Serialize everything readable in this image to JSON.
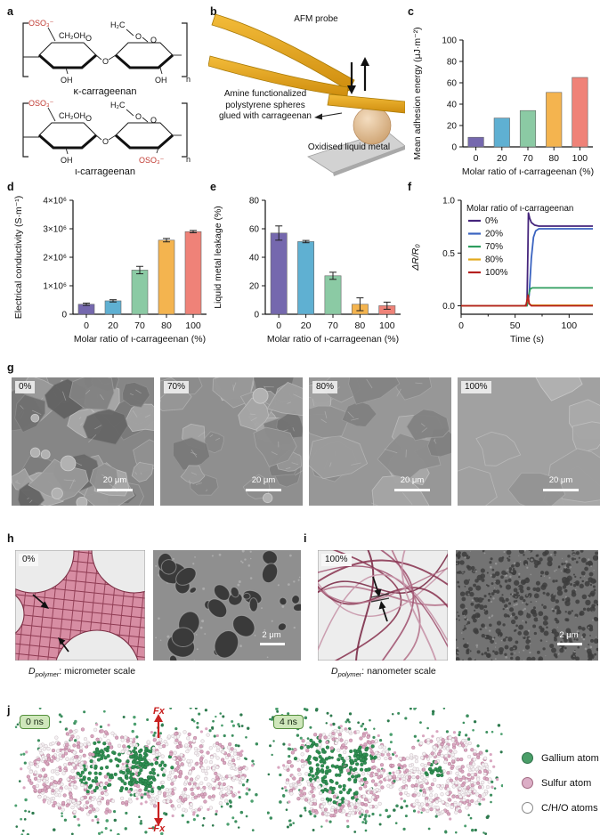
{
  "panel_labels": {
    "a": "a",
    "b": "b",
    "c": "c",
    "d": "d",
    "e": "e",
    "f": "f",
    "g": "g",
    "h": "h",
    "i": "i",
    "j": "j"
  },
  "panel_a": {
    "top": {
      "sulfate": "OSO₃⁻",
      "ch2oh": "CH₂OH",
      "h2c": "H₂C",
      "o_ring1": "O",
      "o_glyco": "O",
      "o_bridge1": "O",
      "o_bridge2": "O",
      "oh_left": "OH",
      "oh_right": "OH",
      "n": "n",
      "caption": "κ-carrageenan"
    },
    "bottom": {
      "sulfate": "OSO₃⁻",
      "ch2oh": "CH₂OH",
      "h2c": "H₂C",
      "o_ring1": "O",
      "o_glyco": "O",
      "o_bridge1": "O",
      "o_bridge2": "O",
      "oh_left": "OH",
      "sulfate2": "OSO₃⁻",
      "n": "n",
      "caption": "ι-carrageenan"
    }
  },
  "panel_b": {
    "probe_label": "AFM probe",
    "sphere_label": [
      "Amine functionalized",
      "polystyrene spheres",
      "glued with carrageenan"
    ],
    "substrate_label": "Oxidised liquid metal"
  },
  "chart_data": [
    {
      "id": "c",
      "type": "bar",
      "categories": [
        "0",
        "20",
        "70",
        "80",
        "100"
      ],
      "values": [
        9,
        27,
        34,
        51,
        65
      ],
      "xlabel": "Molar ratio of ι-carrageenan (%)",
      "ylabel": "Mean adhesion energy (μJ·m⁻²)",
      "ylim": [
        0,
        100
      ],
      "yticks": [
        0,
        20,
        40,
        60,
        80,
        100
      ],
      "bar_colors": [
        "#7568ae",
        "#5fb0d2",
        "#8bcaa4",
        "#f4b44f",
        "#ef8278"
      ]
    },
    {
      "id": "d",
      "type": "bar",
      "categories": [
        "0",
        "20",
        "70",
        "80",
        "100"
      ],
      "values": [
        350000,
        470000,
        1550000,
        2600000,
        2900000
      ],
      "errors": [
        40000,
        40000,
        130000,
        60000,
        40000
      ],
      "xlabel": "Molar ratio of ι-carrageenan (%)",
      "ylabel": "Electrical conductivity (S·m⁻¹)",
      "ylim": [
        0,
        4000000
      ],
      "yticks": [
        0,
        1000000,
        2000000,
        3000000,
        4000000
      ],
      "ytick_labels": [
        "0",
        "1×10⁶",
        "2×10⁶",
        "3×10⁶",
        "4×10⁶"
      ],
      "bar_colors": [
        "#7568ae",
        "#5fb0d2",
        "#8bcaa4",
        "#f4b44f",
        "#ef8278"
      ]
    },
    {
      "id": "e",
      "type": "bar",
      "categories": [
        "0",
        "20",
        "70",
        "80",
        "100"
      ],
      "values": [
        57,
        51,
        27,
        7,
        6
      ],
      "errors": [
        5,
        0.8,
        2.5,
        4.5,
        2.5
      ],
      "xlabel": "Molar ratio of ι-carrageenan (%)",
      "ylabel": "Liquid metal leakage (%)",
      "ylim": [
        0,
        80
      ],
      "yticks": [
        0,
        20,
        40,
        60,
        80
      ],
      "bar_colors": [
        "#7568ae",
        "#5fb0d2",
        "#8bcaa4",
        "#f4b44f",
        "#ef8278"
      ]
    },
    {
      "id": "f",
      "type": "line",
      "xlabel": "Time (s)",
      "ylabel": "ΔR/R₀",
      "xlim": [
        0,
        122
      ],
      "ylim": [
        -0.08,
        1.0
      ],
      "xticks": [
        0,
        50,
        100
      ],
      "yticks": [
        0,
        0.5,
        1
      ],
      "ytick_labels": [
        "0.0",
        "0.5",
        "1.0"
      ],
      "legend_title": "Molar ratio of ι-carrageenan",
      "series": [
        {
          "name": "0%",
          "color": "#45257c",
          "x": [
            0,
            59,
            61,
            61.8,
            62.3,
            63.5,
            65,
            68,
            72,
            122
          ],
          "y": [
            0,
            0,
            0.02,
            0.5,
            0.88,
            0.83,
            0.79,
            0.765,
            0.755,
            0.755
          ]
        },
        {
          "name": "20%",
          "color": "#3a63c0",
          "x": [
            0,
            61,
            63,
            65,
            67,
            69,
            72,
            122
          ],
          "y": [
            0,
            0,
            0.1,
            0.45,
            0.65,
            0.71,
            0.73,
            0.73
          ]
        },
        {
          "name": "70%",
          "color": "#2e9d5e",
          "x": [
            0,
            61,
            62,
            64,
            66,
            122
          ],
          "y": [
            0,
            0,
            0.08,
            0.16,
            0.17,
            0.17
          ]
        },
        {
          "name": "80%",
          "color": "#e2a91c",
          "x": [
            0,
            60,
            61.5,
            63,
            65,
            122
          ],
          "y": [
            0,
            0,
            0.07,
            0.02,
            0.005,
            0.005
          ]
        },
        {
          "name": "100%",
          "color": "#b5201f",
          "x": [
            0,
            60,
            62,
            63,
            65,
            122
          ],
          "y": [
            0,
            0,
            0.1,
            0.02,
            0,
            0
          ]
        }
      ]
    }
  ],
  "panel_g": {
    "images": [
      {
        "tag": "0%",
        "scale_bar": "20 μm"
      },
      {
        "tag": "70%",
        "scale_bar": "20 μm"
      },
      {
        "tag": "80%",
        "scale_bar": "20 μm"
      },
      {
        "tag": "100%",
        "scale_bar": "20 μm"
      }
    ]
  },
  "panel_h": {
    "tag": "0%",
    "scale_bar": "2 μm",
    "caption": {
      "d": "D",
      "sub": "polymer",
      "rest": ": micrometer scale"
    }
  },
  "panel_i": {
    "tag": "100%",
    "scale_bar": "2 μm",
    "caption": {
      "d": "D",
      "sub": "polymer",
      "rest": ": nanometer scale"
    }
  },
  "panel_j": {
    "snapshots": [
      {
        "badge": "0 ns"
      },
      {
        "badge": "4 ns"
      }
    ],
    "force_up": "Fx",
    "force_down": "−Fx",
    "legend": [
      {
        "label": "Gallium atom",
        "fill": "#4a9e68",
        "stroke": "#2e7048"
      },
      {
        "label": "Sulfur atom",
        "fill": "#dcaec6",
        "stroke": "#a06880"
      },
      {
        "label": "C/H/O atoms",
        "fill": "#ffffff",
        "stroke": "#888888"
      }
    ]
  }
}
